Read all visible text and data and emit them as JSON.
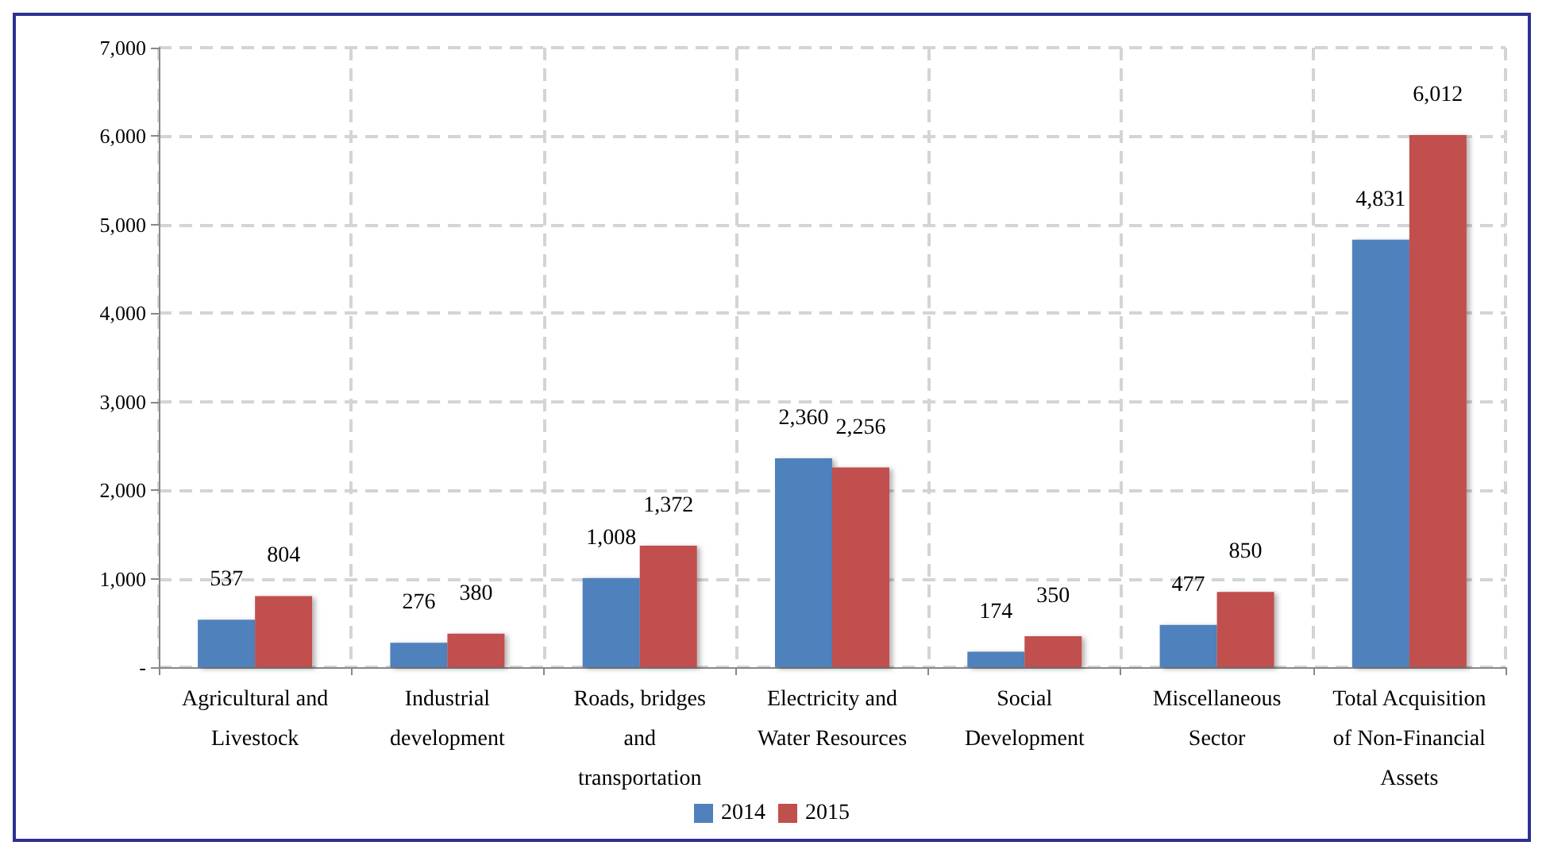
{
  "chart_data": {
    "type": "bar",
    "categories": [
      "Agricultural and\nLivestock",
      "Industrial\ndevelopment",
      "Roads, bridges\nand\ntransportation",
      "Electricity and\nWater Resources",
      "Social\nDevelopment",
      "Miscellaneous\nSector",
      "Total Acquisition\nof Non-Financial\nAssets"
    ],
    "series": [
      {
        "name": "2014",
        "color": "#4f81bd",
        "values": [
          537,
          276,
          1008,
          2360,
          174,
          477,
          4831
        ],
        "value_labels": [
          "537",
          "276",
          "1,008",
          "2,360",
          "174",
          "477",
          "4,831"
        ]
      },
      {
        "name": "2015",
        "color": "#c0504d",
        "values": [
          804,
          380,
          1372,
          2256,
          350,
          850,
          6012
        ],
        "value_labels": [
          "804",
          "380",
          "1,372",
          "2,256",
          "350",
          "850",
          "6,012"
        ]
      }
    ],
    "ylim": [
      0,
      7000
    ],
    "yticks": [
      {
        "value": 0,
        "label": "-"
      },
      {
        "value": 1000,
        "label": "1,000"
      },
      {
        "value": 2000,
        "label": "2,000"
      },
      {
        "value": 3000,
        "label": "3,000"
      },
      {
        "value": 4000,
        "label": "4,000"
      },
      {
        "value": 5000,
        "label": "5,000"
      },
      {
        "value": 6000,
        "label": "6,000"
      },
      {
        "value": 7000,
        "label": "7,000"
      }
    ],
    "grid": true,
    "legend": "bottom"
  }
}
